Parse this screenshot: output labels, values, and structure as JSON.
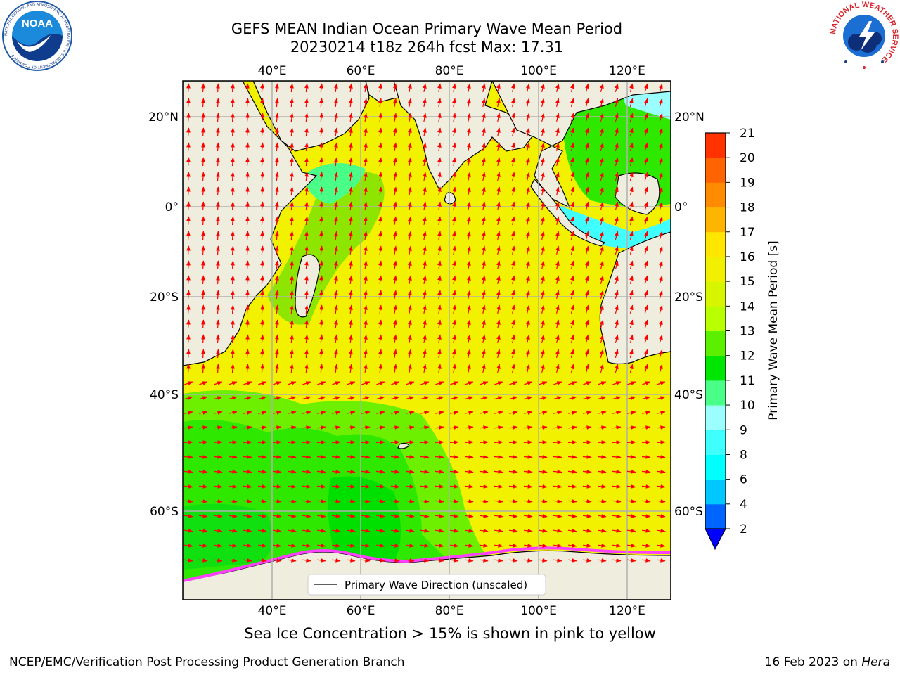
{
  "title_line1": "GEFS MEAN Indian Ocean Primary Wave Mean Period",
  "title_line2": "20230214 t18z 264h fcst   Max: 17.31",
  "noaa_logo": {
    "text": "NOAA",
    "ring_text": "NATIONAL OCEANIC AND ATMOSPHERIC ADMINISTRATION · U.S. DEPARTMENT OF COMMERCE"
  },
  "nws_logo": {
    "ring_text": "NATIONAL WEATHER SERVICE"
  },
  "map": {
    "top_lon_labels": [
      "40°E",
      "60°E",
      "80°E",
      "100°E",
      "120°E"
    ],
    "bottom_lon_labels": [
      "40°E",
      "60°E",
      "80°E",
      "100°E",
      "120°E"
    ],
    "left_lat_labels": [
      "20°N",
      "0°",
      "20°S",
      "40°S",
      "60°S"
    ],
    "right_lat_labels": [
      "20°N",
      "0°",
      "20°S",
      "40°S",
      "60°S"
    ],
    "legend_label": "Primary Wave Direction (unscaled)",
    "arrow_color": "#ff0000",
    "land_color": "#efeddd",
    "grid_color": "#b0b0b0"
  },
  "colorbar": {
    "label": "Primary Wave Mean Period [s]",
    "ticks": [
      "2",
      "4",
      "6",
      "8",
      "9",
      "10",
      "11",
      "12",
      "13",
      "14",
      "15",
      "16",
      "17",
      "18",
      "19",
      "20",
      "21"
    ],
    "colors": [
      "#0064ff",
      "#00c8ff",
      "#00ffff",
      "#40ffff",
      "#9bffff",
      "#49ff88",
      "#00e600",
      "#5cf000",
      "#b8ff00",
      "#d8f500",
      "#f0f000",
      "#ffe600",
      "#ffb400",
      "#ff8c00",
      "#ff6400",
      "#ff3200",
      "#ff0000"
    ],
    "extend_color": "#0000ff"
  },
  "ice_note": "Sea Ice Concentration > 15% is shown in pink to yellow",
  "footer_left": "NCEP/EMC/Verification Post Processing Product Generation Branch",
  "footer_right_prefix": "16 Feb 2023 on ",
  "footer_right_machine": "Hera"
}
